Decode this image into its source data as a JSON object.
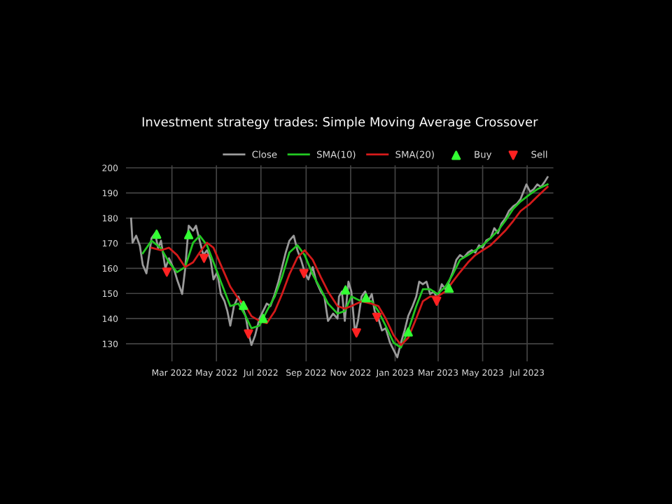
{
  "chart_data": {
    "type": "line",
    "title": "Investment strategy trades: Simple Moving Average Crossover",
    "xlim": [
      "2021-12-28",
      "2023-08-06"
    ],
    "ylim": [
      123,
      201
    ],
    "xticks": [
      {
        "value": "2022-03-01",
        "label": "Mar 2022"
      },
      {
        "value": "2022-05-01",
        "label": "May 2022"
      },
      {
        "value": "2022-07-01",
        "label": "Jul 2022"
      },
      {
        "value": "2022-09-01",
        "label": "Sep 2022"
      },
      {
        "value": "2022-11-01",
        "label": "Nov 2022"
      },
      {
        "value": "2023-01-01",
        "label": "Jan 2023"
      },
      {
        "value": "2023-03-01",
        "label": "Mar 2023"
      },
      {
        "value": "2023-05-01",
        "label": "May 2023"
      },
      {
        "value": "2023-07-01",
        "label": "Jul 2023"
      }
    ],
    "yticks": [
      130,
      140,
      150,
      160,
      170,
      180,
      190,
      200
    ],
    "grid": true,
    "legend": "top right",
    "line_style": "solid",
    "series": [
      {
        "name": "Close",
        "color": "#9a9a9a",
        "x": [
          "2022-01-04",
          "2022-01-06",
          "2022-01-11",
          "2022-01-16",
          "2022-01-20",
          "2022-01-25",
          "2022-02-01",
          "2022-02-06",
          "2022-02-10",
          "2022-02-14",
          "2022-02-20",
          "2022-02-25",
          "2022-03-04",
          "2022-03-08",
          "2022-03-15",
          "2022-03-19",
          "2022-03-24",
          "2022-03-30",
          "2022-04-03",
          "2022-04-08",
          "2022-04-13",
          "2022-04-18",
          "2022-04-23",
          "2022-04-27",
          "2022-05-02",
          "2022-05-07",
          "2022-05-12",
          "2022-05-16",
          "2022-05-20",
          "2022-05-25",
          "2022-05-31",
          "2022-06-05",
          "2022-06-10",
          "2022-06-14",
          "2022-06-18",
          "2022-06-23",
          "2022-06-29",
          "2022-07-04",
          "2022-07-09",
          "2022-07-14",
          "2022-07-20",
          "2022-07-25",
          "2022-07-30",
          "2022-08-04",
          "2022-08-09",
          "2022-08-15",
          "2022-08-20",
          "2022-08-25",
          "2022-08-30",
          "2022-09-04",
          "2022-09-10",
          "2022-09-15",
          "2022-09-21",
          "2022-09-26",
          "2022-10-01",
          "2022-10-08",
          "2022-10-14",
          "2022-10-16",
          "2022-10-20",
          "2022-10-24",
          "2022-10-29",
          "2022-11-02",
          "2022-11-07",
          "2022-11-11",
          "2022-11-16",
          "2022-11-21",
          "2022-11-25",
          "2022-11-30",
          "2022-12-04",
          "2022-12-09",
          "2022-12-14",
          "2022-12-19",
          "2022-12-25",
          "2022-12-30",
          "2023-01-04",
          "2023-01-09",
          "2023-01-14",
          "2023-01-19",
          "2023-01-25",
          "2023-01-30",
          "2023-02-03",
          "2023-02-08",
          "2023-02-13",
          "2023-02-18",
          "2023-02-23",
          "2023-02-28",
          "2023-03-06",
          "2023-03-11",
          "2023-03-16",
          "2023-03-21",
          "2023-03-26",
          "2023-03-31",
          "2023-04-05",
          "2023-04-11",
          "2023-04-16",
          "2023-04-21",
          "2023-04-26",
          "2023-05-01",
          "2023-05-06",
          "2023-05-12",
          "2023-05-17",
          "2023-05-22",
          "2023-05-27",
          "2023-06-01",
          "2023-06-06",
          "2023-06-12",
          "2023-06-17",
          "2023-06-22",
          "2023-06-26",
          "2023-06-30",
          "2023-07-05",
          "2023-07-10",
          "2023-07-15",
          "2023-07-20",
          "2023-07-25",
          "2023-07-29"
        ],
        "values": [
          179.8,
          170.2,
          173,
          169,
          161.4,
          158,
          172,
          174,
          168,
          171,
          160,
          164,
          159.5,
          155.6,
          149.8,
          159.5,
          177,
          175,
          177,
          171,
          165.3,
          167.2,
          163.4,
          155.6,
          158.5,
          149.8,
          147,
          143,
          137.2,
          145,
          148.8,
          145,
          141,
          134.3,
          129.5,
          133.3,
          140,
          143,
          146,
          145,
          149.8,
          154.7,
          160.5,
          166.3,
          171,
          173,
          167.2,
          163.4,
          158.5,
          155.6,
          160.5,
          154.7,
          150.8,
          148.8,
          139.1,
          142,
          140,
          148.8,
          150.8,
          139.1,
          154.7,
          150.8,
          134.3,
          139.1,
          148.8,
          150.8,
          146.9,
          149.8,
          143,
          140.1,
          135.3,
          136.2,
          130.4,
          127.5,
          124.6,
          130.4,
          135.3,
          141.1,
          145,
          148.8,
          154.7,
          153.7,
          154.7,
          149.8,
          150.8,
          147.9,
          153.7,
          151.7,
          154.7,
          158.5,
          163.4,
          165.3,
          164.3,
          166.3,
          167.2,
          166.3,
          169.2,
          168.2,
          171.1,
          172.1,
          176,
          174,
          177.9,
          179.8,
          182.8,
          184.7,
          185.7,
          187.6,
          190.5,
          193.4,
          190.5,
          191.5,
          193.4,
          192.4,
          194.4,
          196.3
        ]
      },
      {
        "name": "SMA(10)",
        "color": "#22c722",
        "x": [
          "2022-01-20",
          "2022-02-01",
          "2022-02-14",
          "2022-02-25",
          "2022-03-08",
          "2022-03-19",
          "2022-03-30",
          "2022-04-08",
          "2022-04-18",
          "2022-04-27",
          "2022-05-07",
          "2022-05-20",
          "2022-05-31",
          "2022-06-10",
          "2022-06-18",
          "2022-06-29",
          "2022-07-09",
          "2022-07-20",
          "2022-07-30",
          "2022-08-09",
          "2022-08-20",
          "2022-08-30",
          "2022-09-10",
          "2022-09-21",
          "2022-10-01",
          "2022-10-14",
          "2022-10-24",
          "2022-11-02",
          "2022-11-16",
          "2022-11-30",
          "2022-12-09",
          "2022-12-19",
          "2022-12-30",
          "2023-01-09",
          "2023-01-19",
          "2023-01-30",
          "2023-02-08",
          "2023-02-18",
          "2023-02-28",
          "2023-03-11",
          "2023-03-21",
          "2023-03-31",
          "2023-04-11",
          "2023-04-21",
          "2023-05-01",
          "2023-05-12",
          "2023-05-22",
          "2023-06-01",
          "2023-06-12",
          "2023-06-22",
          "2023-07-05",
          "2023-07-15",
          "2023-07-29"
        ],
        "values": [
          166,
          171,
          168,
          162.4,
          158.5,
          160.5,
          170.2,
          173,
          169.2,
          162.4,
          154.7,
          145,
          146,
          141,
          136.2,
          137.2,
          143,
          148.8,
          156.6,
          166.3,
          169.2,
          165.3,
          157.6,
          151.7,
          146,
          142,
          143,
          148.8,
          146.9,
          146.9,
          143,
          137.2,
          130.4,
          128.5,
          135.3,
          145,
          151.7,
          151.7,
          149.8,
          152.7,
          157.6,
          163.4,
          165.3,
          167.2,
          169.2,
          172.1,
          175,
          178.9,
          183.7,
          186.6,
          189.5,
          191.5,
          193.4
        ]
      },
      {
        "name": "SMA(20)",
        "color": "#d41a1a",
        "x": [
          "2022-02-01",
          "2022-02-14",
          "2022-02-25",
          "2022-03-08",
          "2022-03-19",
          "2022-03-30",
          "2022-04-08",
          "2022-04-18",
          "2022-04-27",
          "2022-05-07",
          "2022-05-20",
          "2022-05-31",
          "2022-06-10",
          "2022-06-18",
          "2022-06-29",
          "2022-07-09",
          "2022-07-20",
          "2022-07-30",
          "2022-08-09",
          "2022-08-20",
          "2022-08-30",
          "2022-09-10",
          "2022-09-21",
          "2022-10-01",
          "2022-10-14",
          "2022-10-24",
          "2022-11-02",
          "2022-11-16",
          "2022-11-30",
          "2022-12-09",
          "2022-12-19",
          "2022-12-30",
          "2023-01-09",
          "2023-01-19",
          "2023-01-30",
          "2023-02-08",
          "2023-02-18",
          "2023-02-28",
          "2023-03-11",
          "2023-03-21",
          "2023-03-31",
          "2023-04-11",
          "2023-04-21",
          "2023-05-01",
          "2023-05-12",
          "2023-05-22",
          "2023-06-01",
          "2023-06-12",
          "2023-06-22",
          "2023-07-05",
          "2023-07-15",
          "2023-07-29"
        ],
        "values": [
          168.2,
          167.2,
          168.2,
          165.3,
          160.5,
          162.4,
          166.3,
          170.2,
          168.2,
          161.4,
          152.7,
          147.9,
          145,
          141,
          139.1,
          138.2,
          143,
          149.8,
          157.6,
          164.3,
          167.2,
          163.4,
          156.6,
          150.8,
          145,
          144,
          145,
          146.9,
          145.9,
          145,
          140.1,
          133.3,
          129.5,
          132.4,
          140.1,
          146.9,
          148.8,
          148.8,
          150.8,
          154.7,
          158.5,
          162.4,
          165.3,
          167.2,
          169.2,
          172.1,
          175,
          178.9,
          182.8,
          185.7,
          188.6,
          192.4
        ]
      },
      {
        "name": "Buy",
        "type": "scatter",
        "marker": "triangle",
        "color": "#33ff33",
        "x": [
          "2022-02-08",
          "2022-03-24",
          "2022-06-07",
          "2022-07-04",
          "2022-10-25",
          "2022-11-22",
          "2023-01-19",
          "2023-03-16"
        ],
        "values": [
          173.6,
          173.4,
          145.3,
          140.1,
          151.4,
          148.3,
          134.7,
          152.1
        ]
      },
      {
        "name": "Sell",
        "type": "scatter",
        "marker": "triangle_down",
        "color": "#ff2222",
        "x": [
          "2022-02-22",
          "2022-04-14",
          "2022-06-14",
          "2022-08-29",
          "2022-11-09",
          "2022-12-07",
          "2023-02-27"
        ],
        "values": [
          158.5,
          164,
          133.9,
          157.9,
          134.3,
          140.5,
          146.9
        ]
      }
    ]
  }
}
